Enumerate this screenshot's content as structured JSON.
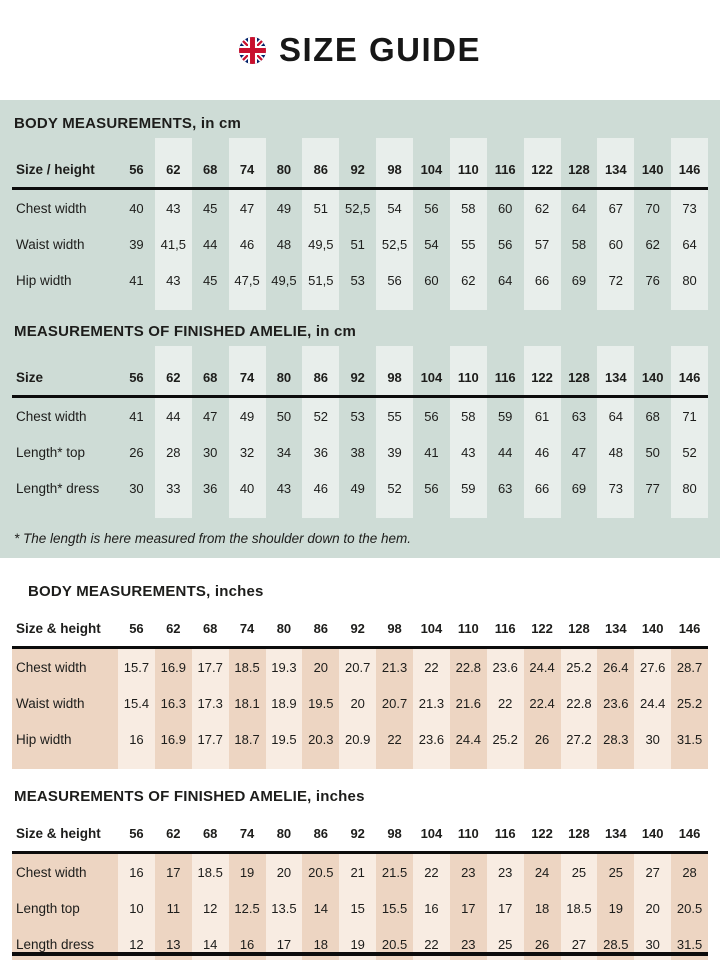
{
  "header": {
    "title": "SIZE GUIDE",
    "flag": "uk-flag"
  },
  "colors": {
    "green_bg": "#cedcd6",
    "green_stripe": "#e8eeeb",
    "peach_light": "#f8ece2",
    "peach_dark": "#edd5c2",
    "text": "#1d1d1b",
    "rule": "#0c0c0c",
    "flag_blue": "#012169",
    "flag_red": "#c8102e"
  },
  "sizes": [
    "56",
    "62",
    "68",
    "74",
    "80",
    "86",
    "92",
    "98",
    "104",
    "110",
    "116",
    "122",
    "128",
    "134",
    "140",
    "146"
  ],
  "tables": [
    {
      "title": "BODY MEASUREMENTS, in cm",
      "header_label": "Size / height",
      "rows": [
        {
          "label": "Chest width",
          "values": [
            "40",
            "43",
            "45",
            "47",
            "49",
            "51",
            "52,5",
            "54",
            "56",
            "58",
            "60",
            "62",
            "64",
            "67",
            "70",
            "73"
          ]
        },
        {
          "label": "Waist width",
          "values": [
            "39",
            "41,5",
            "44",
            "46",
            "48",
            "49,5",
            "51",
            "52,5",
            "54",
            "55",
            "56",
            "57",
            "58",
            "60",
            "62",
            "64"
          ]
        },
        {
          "label": "Hip width",
          "values": [
            "41",
            "43",
            "45",
            "47,5",
            "49,5",
            "51,5",
            "53",
            "56",
            "60",
            "62",
            "64",
            "66",
            "69",
            "72",
            "76",
            "80"
          ]
        }
      ]
    },
    {
      "title": "MEASUREMENTS OF FINISHED AMELIE, in cm",
      "header_label": "Size",
      "rows": [
        {
          "label": "Chest width",
          "values": [
            "41",
            "44",
            "47",
            "49",
            "50",
            "52",
            "53",
            "55",
            "56",
            "58",
            "59",
            "61",
            "63",
            "64",
            "68",
            "71"
          ]
        },
        {
          "label": "Length* top",
          "values": [
            "26",
            "28",
            "30",
            "32",
            "34",
            "36",
            "38",
            "39",
            "41",
            "43",
            "44",
            "46",
            "47",
            "48",
            "50",
            "52"
          ]
        },
        {
          "label": "Length* dress",
          "values": [
            "30",
            "33",
            "36",
            "40",
            "43",
            "46",
            "49",
            "52",
            "56",
            "59",
            "63",
            "66",
            "69",
            "73",
            "77",
            "80"
          ]
        }
      ]
    },
    {
      "title": "BODY MEASUREMENTS, inches",
      "header_label": "Size & height",
      "rows": [
        {
          "label": "Chest width",
          "values": [
            "15.7",
            "16.9",
            "17.7",
            "18.5",
            "19.3",
            "20",
            "20.7",
            "21.3",
            "22",
            "22.8",
            "23.6",
            "24.4",
            "25.2",
            "26.4",
            "27.6",
            "28.7"
          ]
        },
        {
          "label": "Waist width",
          "values": [
            "15.4",
            "16.3",
            "17.3",
            "18.1",
            "18.9",
            "19.5",
            "20",
            "20.7",
            "21.3",
            "21.6",
            "22",
            "22.4",
            "22.8",
            "23.6",
            "24.4",
            "25.2"
          ]
        },
        {
          "label": "Hip width",
          "values": [
            "16",
            "16.9",
            "17.7",
            "18.7",
            "19.5",
            "20.3",
            "20.9",
            "22",
            "23.6",
            "24.4",
            "25.2",
            "26",
            "27.2",
            "28.3",
            "30",
            "31.5"
          ]
        }
      ]
    },
    {
      "title": "MEASUREMENTS OF FINISHED AMELIE, inches",
      "header_label": "Size & height",
      "rows": [
        {
          "label": "Chest width",
          "values": [
            "16",
            "17",
            "18.5",
            "19",
            "20",
            "20.5",
            "21",
            "21.5",
            "22",
            "23",
            "23",
            "24",
            "25",
            "25",
            "27",
            "28"
          ]
        },
        {
          "label": "Length top",
          "values": [
            "10",
            "11",
            "12",
            "12.5",
            "13.5",
            "14",
            "15",
            "15.5",
            "16",
            "17",
            "17",
            "18",
            "18.5",
            "19",
            "20",
            "20.5"
          ]
        },
        {
          "label": "Length dress",
          "values": [
            "12",
            "13",
            "14",
            "16",
            "17",
            "18",
            "19",
            "20.5",
            "22",
            "23",
            "25",
            "26",
            "27",
            "28.5",
            "30",
            "31.5"
          ]
        }
      ]
    }
  ],
  "footnote": "* The length is here measured from the shoulder down to the hem."
}
